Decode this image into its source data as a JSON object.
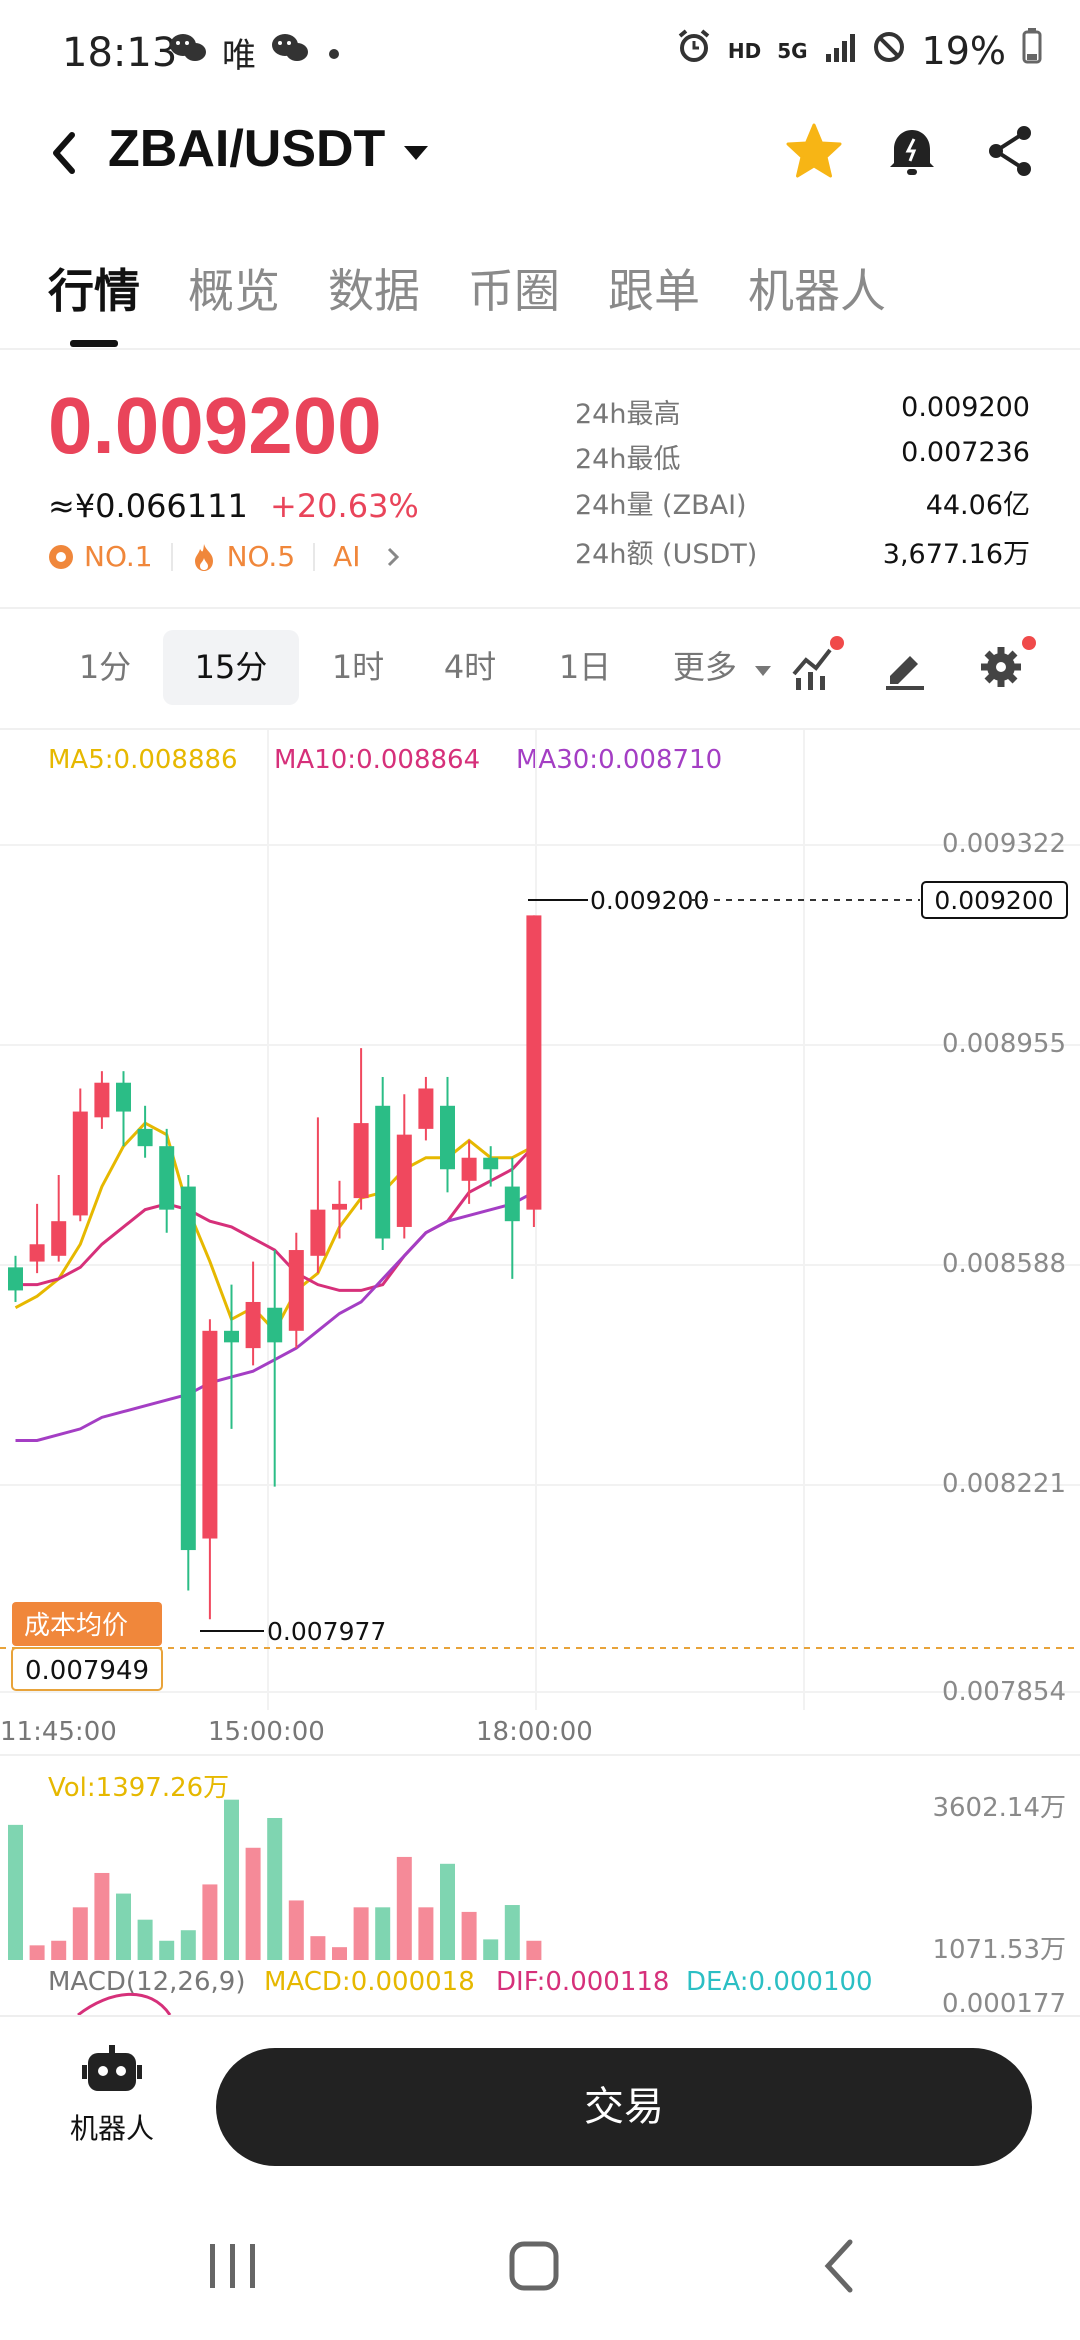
{
  "status_bar": {
    "time": "18:13",
    "notif_text": "唯",
    "hd": "HD",
    "network": "5G",
    "battery": "19%"
  },
  "header": {
    "pair": "ZBAI/USDT"
  },
  "tabs": [
    {
      "label": "行情",
      "active": true
    },
    {
      "label": "概览"
    },
    {
      "label": "数据"
    },
    {
      "label": "币圈"
    },
    {
      "label": "跟单"
    },
    {
      "label": "机器人"
    }
  ],
  "ticker": {
    "price": "0.009200",
    "cny": "≈¥0.066111",
    "change": "+20.63%",
    "tags": [
      "NO.1",
      "NO.5",
      "AI"
    ],
    "stats": [
      {
        "label": "24h最高",
        "value": "0.009200"
      },
      {
        "label": "24h最低",
        "value": "0.007236"
      },
      {
        "label": "24h量 (ZBAI)",
        "value": "44.06亿"
      },
      {
        "label": "24h额 (USDT)",
        "value": "3,677.16万"
      }
    ]
  },
  "intervals": {
    "items": [
      "1分",
      "15分",
      "1时",
      "4时",
      "1日"
    ],
    "active": "15分",
    "more": "更多"
  },
  "chart_data": {
    "type": "candlestick",
    "ma_legend": [
      {
        "label": "MA5:0.008886",
        "color": "#e6b800"
      },
      {
        "label": "MA10:0.008864",
        "color": "#d6307a"
      },
      {
        "label": "MA30:0.008710",
        "color": "#a43ec4"
      }
    ],
    "price_axis": [
      "0.009322",
      "0.008955",
      "0.008588",
      "0.008221",
      "0.007854"
    ],
    "ylim": [
      0.007854,
      0.009322
    ],
    "time_axis": [
      "11:45:00",
      "15:00:00",
      "18:00:00"
    ],
    "high_label": "0.009200",
    "low_label": "0.007977",
    "last_price_tag": "0.009200",
    "cost_label": "成本均价",
    "cost_value": "0.007949",
    "candles": [
      {
        "o": 0.00859,
        "c": 0.00855,
        "h": 0.00861,
        "l": 0.00853
      },
      {
        "o": 0.0086,
        "c": 0.00863,
        "h": 0.0087,
        "l": 0.00858
      },
      {
        "o": 0.00861,
        "c": 0.00867,
        "h": 0.00875,
        "l": 0.0086
      },
      {
        "o": 0.00868,
        "c": 0.00886,
        "h": 0.0089,
        "l": 0.00867
      },
      {
        "o": 0.00885,
        "c": 0.00891,
        "h": 0.00893,
        "l": 0.00883
      },
      {
        "o": 0.00891,
        "c": 0.00886,
        "h": 0.00893,
        "l": 0.0088
      },
      {
        "o": 0.00883,
        "c": 0.0088,
        "h": 0.00887,
        "l": 0.00878
      },
      {
        "o": 0.0088,
        "c": 0.00869,
        "h": 0.00883,
        "l": 0.00865
      },
      {
        "o": 0.00873,
        "c": 0.0081,
        "h": 0.00875,
        "l": 0.00803
      },
      {
        "o": 0.00812,
        "c": 0.00848,
        "h": 0.0085,
        "l": 0.00798
      },
      {
        "o": 0.00848,
        "c": 0.00846,
        "h": 0.00856,
        "l": 0.00831
      },
      {
        "o": 0.00845,
        "c": 0.00853,
        "h": 0.0086,
        "l": 0.00842
      },
      {
        "o": 0.00852,
        "c": 0.00846,
        "h": 0.00862,
        "l": 0.00821
      },
      {
        "o": 0.00848,
        "c": 0.00862,
        "h": 0.00865,
        "l": 0.00845
      },
      {
        "o": 0.00861,
        "c": 0.00869,
        "h": 0.00885,
        "l": 0.00858
      },
      {
        "o": 0.00869,
        "c": 0.0087,
        "h": 0.00874,
        "l": 0.00864
      },
      {
        "o": 0.00871,
        "c": 0.00884,
        "h": 0.00897,
        "l": 0.00869
      },
      {
        "o": 0.00887,
        "c": 0.00864,
        "h": 0.00892,
        "l": 0.00862
      },
      {
        "o": 0.00866,
        "c": 0.00882,
        "h": 0.00889,
        "l": 0.00864
      },
      {
        "o": 0.00883,
        "c": 0.0089,
        "h": 0.00892,
        "l": 0.00881
      },
      {
        "o": 0.00887,
        "c": 0.00876,
        "h": 0.00892,
        "l": 0.00872
      },
      {
        "o": 0.00874,
        "c": 0.00878,
        "h": 0.00881,
        "l": 0.0087
      },
      {
        "o": 0.00878,
        "c": 0.00876,
        "h": 0.0088,
        "l": 0.00873
      },
      {
        "o": 0.00873,
        "c": 0.00867,
        "h": 0.00878,
        "l": 0.00857
      },
      {
        "o": 0.00869,
        "c": 0.0092,
        "h": 0.0092,
        "l": 0.00866
      }
    ],
    "ma5": [
      0.00852,
      0.00854,
      0.00857,
      0.00863,
      0.00873,
      0.0088,
      0.00884,
      0.00882,
      0.00869,
      0.0086,
      0.0085,
      0.00852,
      0.00848,
      0.00855,
      0.00858,
      0.00866,
      0.00871,
      0.00872,
      0.00876,
      0.00878,
      0.00878,
      0.00881,
      0.00878,
      0.00878,
      0.0088
    ],
    "ma10": [
      0.00856,
      0.00856,
      0.00857,
      0.00859,
      0.00863,
      0.00866,
      0.00869,
      0.0087,
      0.00869,
      0.00867,
      0.00866,
      0.00864,
      0.00862,
      0.00858,
      0.00856,
      0.00855,
      0.00855,
      0.00856,
      0.00861,
      0.00865,
      0.00867,
      0.00872,
      0.00874,
      0.00876,
      0.0088
    ],
    "ma30": [
      0.00829,
      0.00829,
      0.0083,
      0.00831,
      0.00833,
      0.00834,
      0.00835,
      0.00836,
      0.00837,
      0.00839,
      0.0084,
      0.00841,
      0.00843,
      0.00845,
      0.00848,
      0.00851,
      0.00853,
      0.00857,
      0.00861,
      0.00865,
      0.00867,
      0.00868,
      0.00869,
      0.0087,
      0.00872
    ],
    "volume": {
      "label": "Vol:1397.26万",
      "axis": [
        "3602.14万",
        "1071.53万"
      ],
      "values": [
        2950,
        320,
        420,
        1150,
        1900,
        1450,
        880,
        420,
        650,
        1650,
        3500,
        2450,
        3100,
        1300,
        520,
        280,
        1150,
        1150,
        2250,
        1150,
        2100,
        1050,
        450,
        1200,
        420
      ]
    },
    "macd": {
      "label": "MACD(12,26,9)",
      "macd": "MACD:0.000018",
      "dif": "DIF:0.000118",
      "dea": "DEA:0.000100",
      "axis": "0.000177"
    }
  },
  "bottom": {
    "robot_label": "机器人",
    "trade_label": "交易"
  }
}
